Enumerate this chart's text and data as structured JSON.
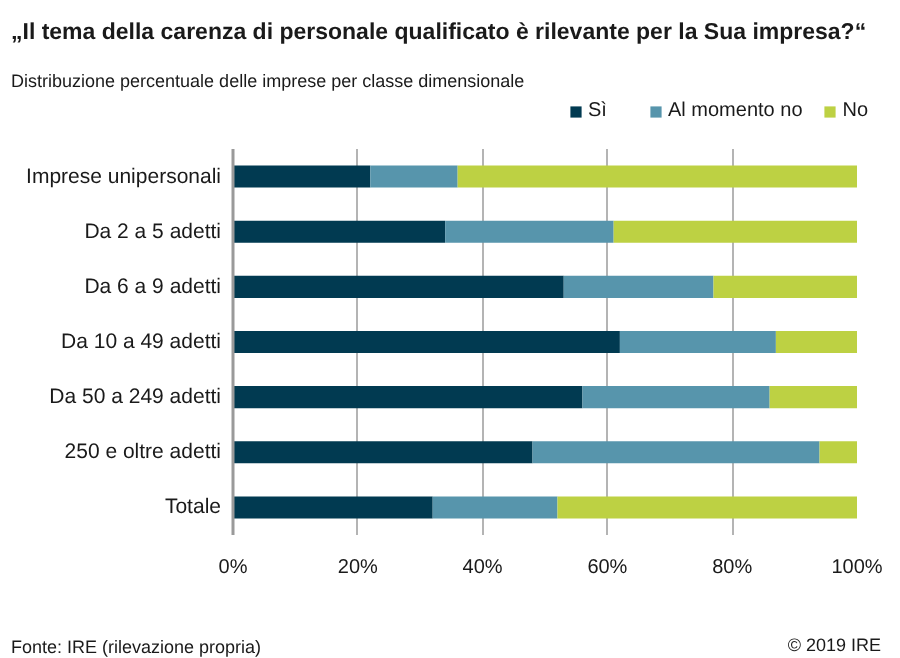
{
  "chart_data": {
    "type": "bar",
    "orientation": "horizontal",
    "stacked": true,
    "title": "„Il tema della carenza di personale qualificato è rilevante per la Sua impresa?“",
    "subtitle": "Distribuzione percentuale delle imprese per classe dimensionale",
    "categories": [
      "Imprese unipersonali",
      "Da 2 a 5 adetti",
      "Da 6 a 9 adetti",
      "Da 10 a 49 adetti",
      "Da 50 a 249 adetti",
      "250 e oltre adetti",
      "Totale"
    ],
    "series": [
      {
        "name": "Sì",
        "color": "#013a51",
        "values": [
          22,
          34,
          53,
          62,
          56,
          48,
          32
        ]
      },
      {
        "name": "Al momento no",
        "color": "#5795ac",
        "values": [
          14,
          27,
          24,
          25,
          30,
          46,
          20
        ]
      },
      {
        "name": "No",
        "color": "#bdd143",
        "values": [
          64,
          39,
          23,
          13,
          14,
          6,
          48
        ]
      }
    ],
    "xlim": [
      0,
      100
    ],
    "xticks": [
      {
        "value": 0,
        "label": "0%"
      },
      {
        "value": 20,
        "label": "20%"
      },
      {
        "value": 40,
        "label": "40%"
      },
      {
        "value": 60,
        "label": "60%"
      },
      {
        "value": 80,
        "label": "80%"
      },
      {
        "value": 100,
        "label": "100%"
      }
    ],
    "grid": "x",
    "legend": "top right",
    "annotations": [
      "Fonte: IRE (rilevazione propria)",
      "© 2019 IRE"
    ]
  }
}
